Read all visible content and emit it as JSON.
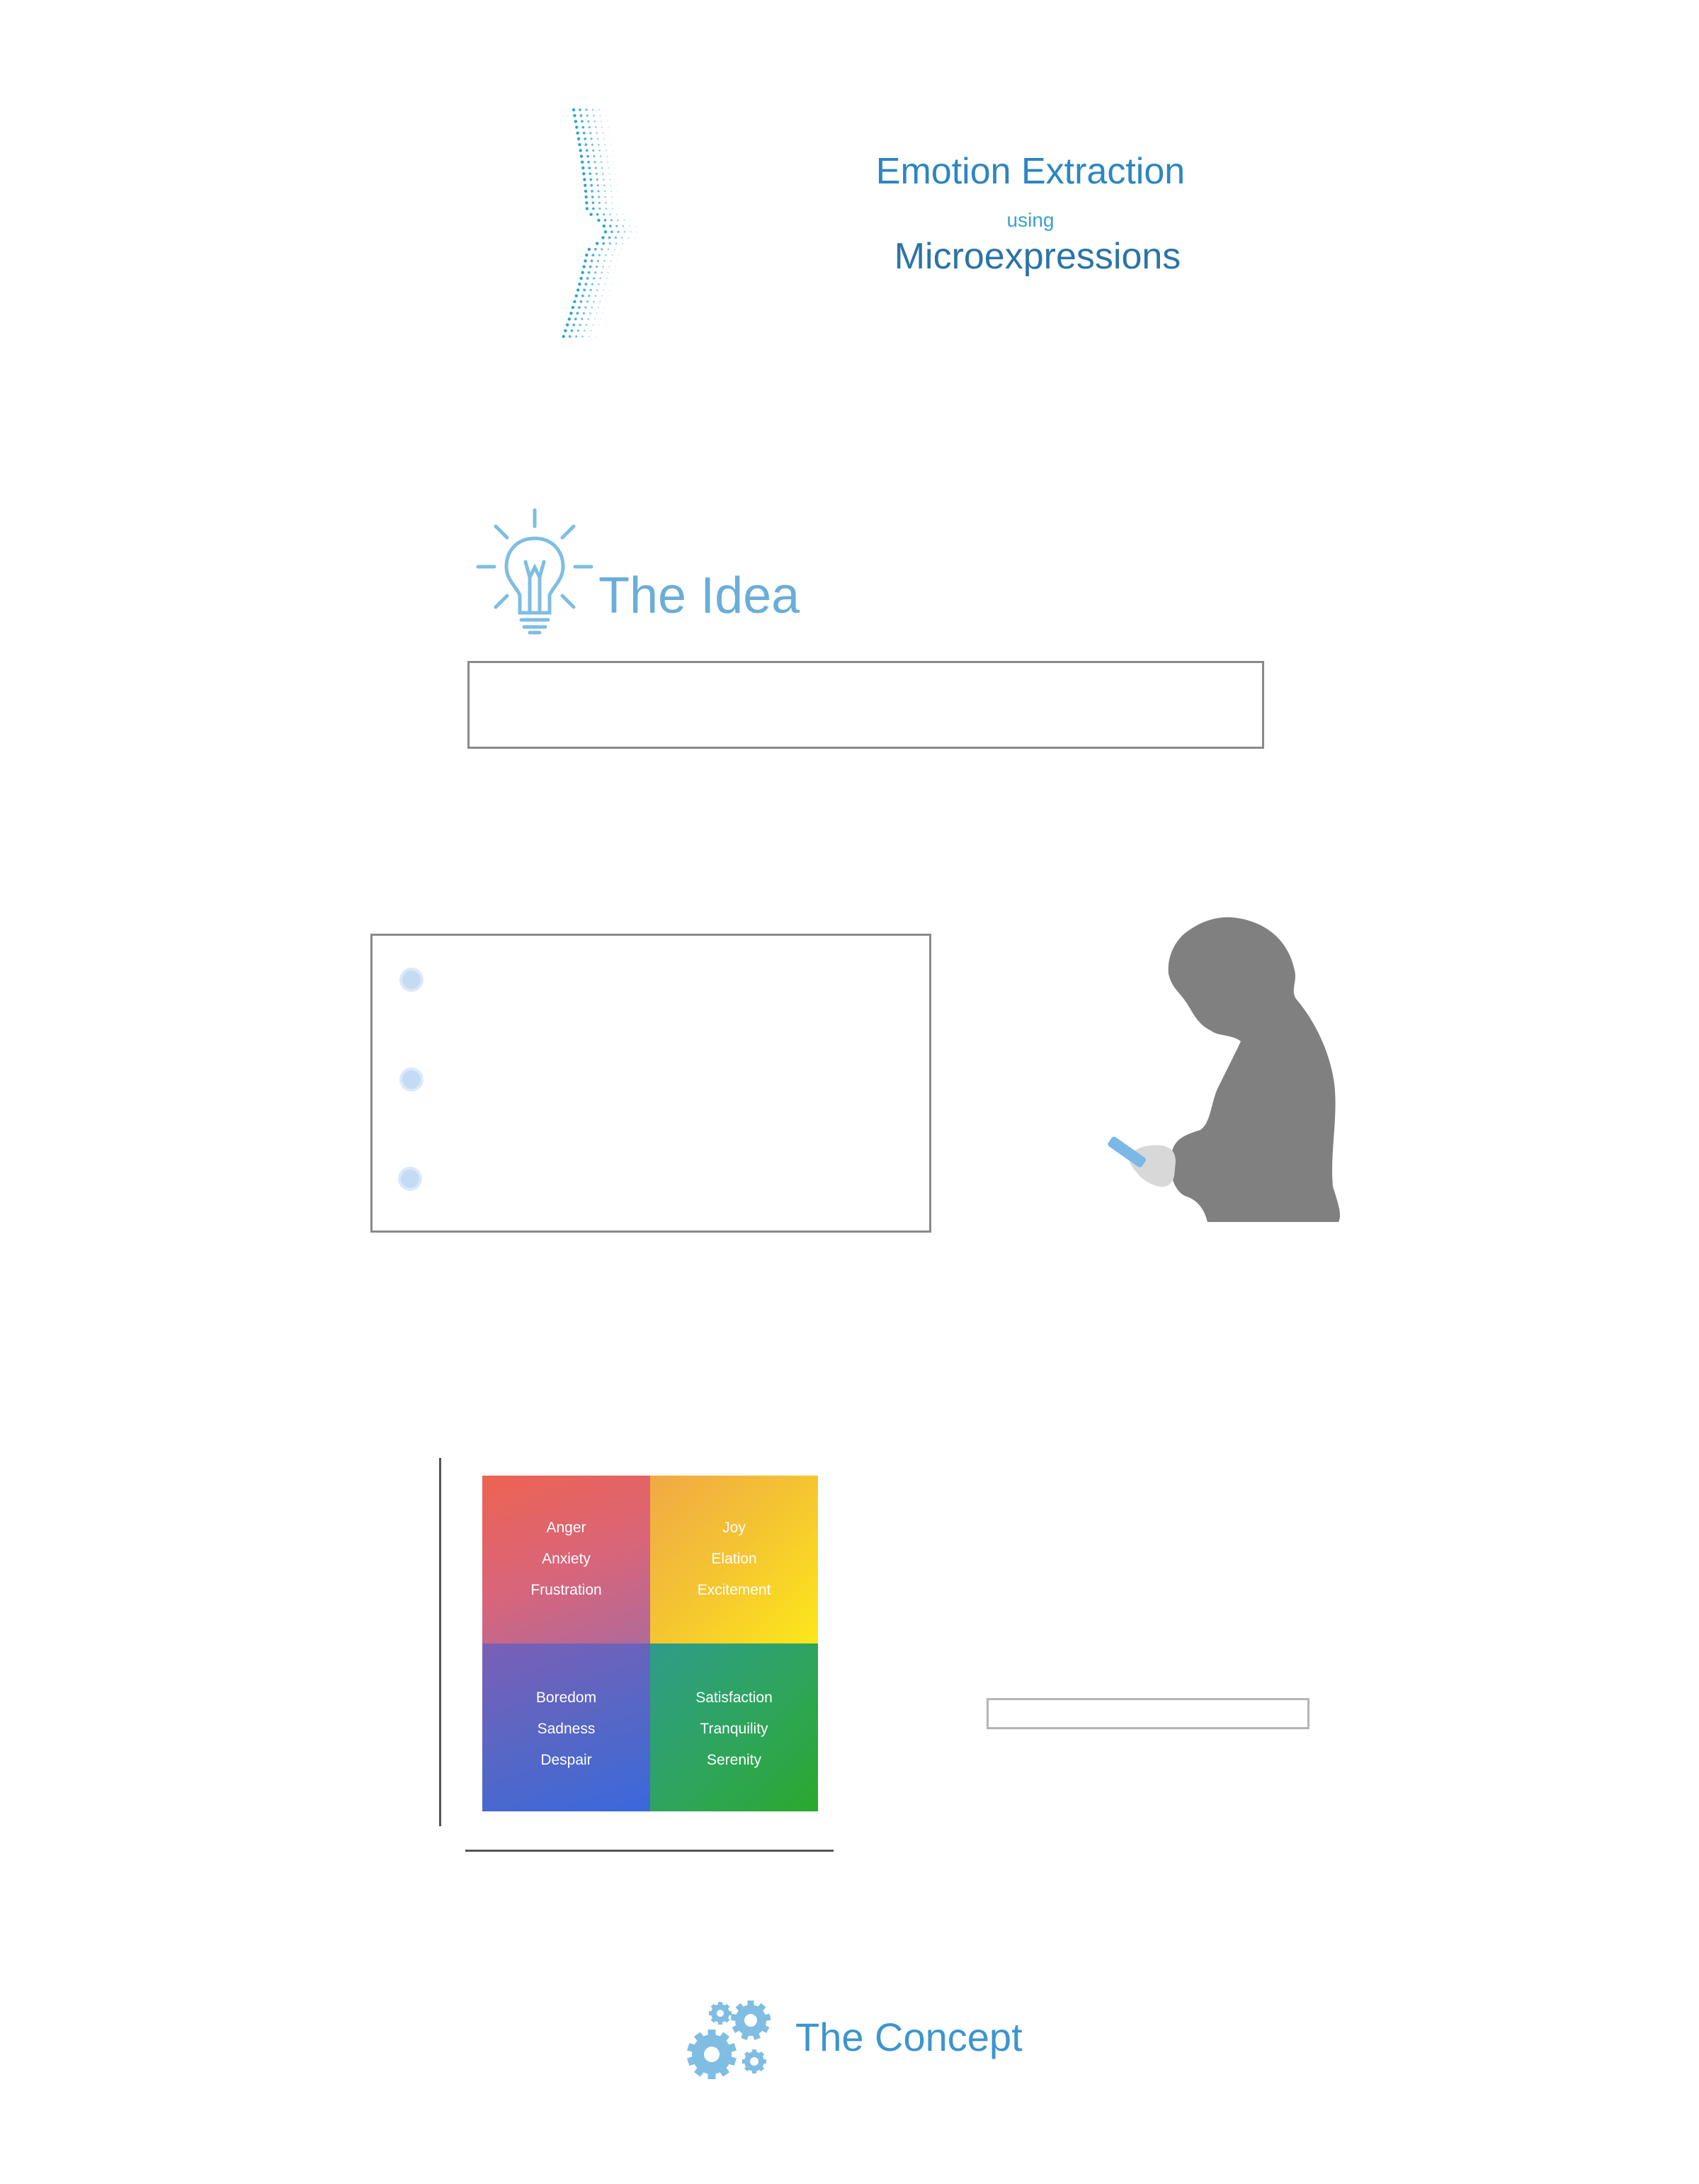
{
  "title": {
    "main": "Emotion Extraction",
    "connector": "using",
    "sub": "Microexpressions"
  },
  "idea": {
    "heading": "The Idea",
    "icon": "lightbulb-icon"
  },
  "bullets": [
    {
      "icon": "bullet-dot"
    },
    {
      "icon": "bullet-dot"
    },
    {
      "icon": "bullet-dot"
    }
  ],
  "emotion_grid": {
    "top_left": [
      "Anger",
      "Anxiety",
      "Frustration"
    ],
    "top_right": [
      "Joy",
      "Elation",
      "Excitement"
    ],
    "bottom_left": [
      "Boredom",
      "Sadness",
      "Despair"
    ],
    "bottom_right": [
      "Satisfaction",
      "Tranquility",
      "Serenity"
    ]
  },
  "concept": {
    "heading": "The Concept",
    "icon": "gears-icon"
  },
  "colors": {
    "title_blue": "#2d86c0",
    "heading_blue": "#6aaed8",
    "silhouette_gray": "#808080",
    "phone_blue": "#7ab8e8"
  }
}
